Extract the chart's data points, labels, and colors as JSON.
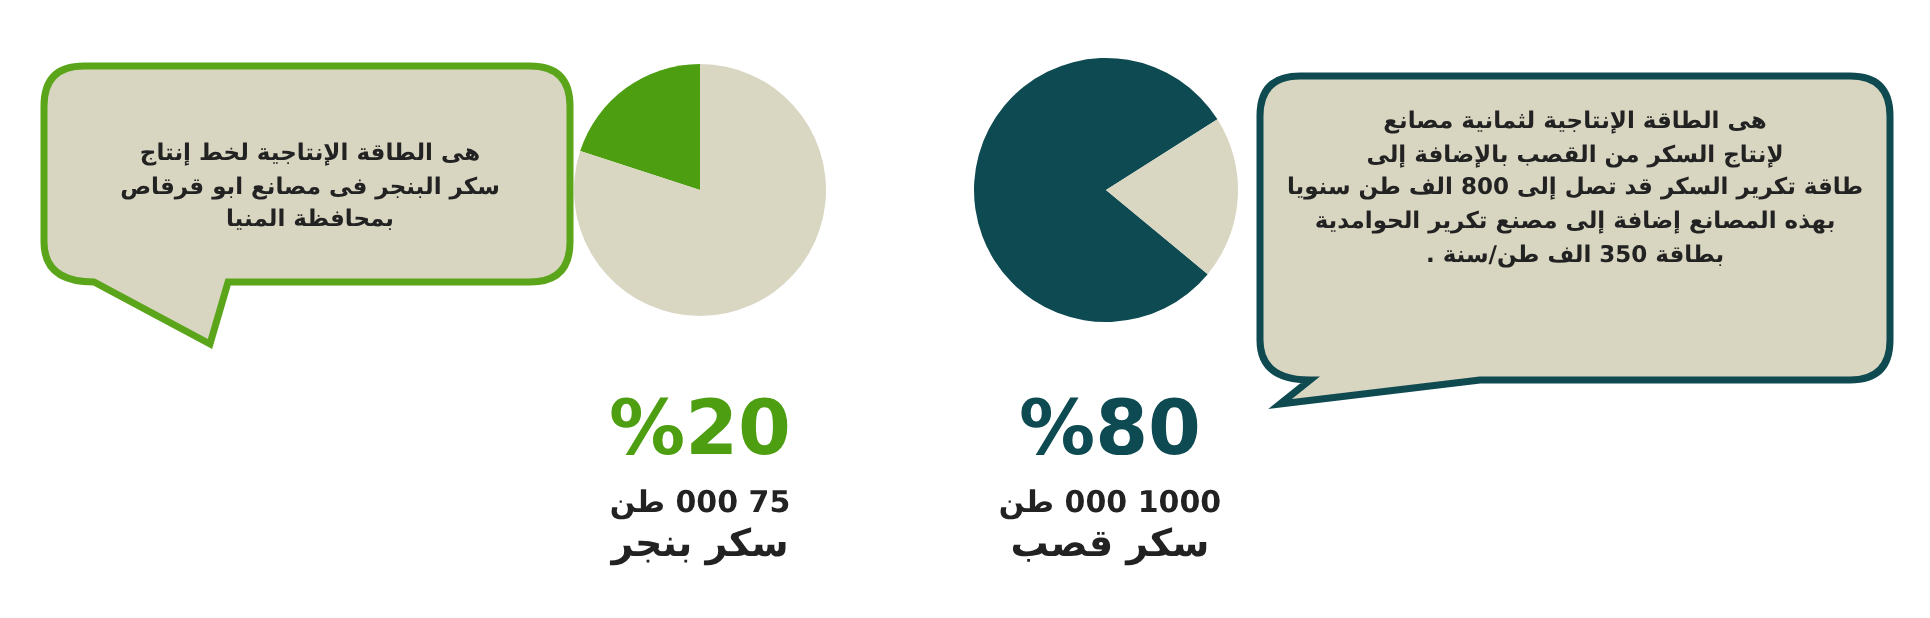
{
  "chart_data": [
    {
      "type": "pie",
      "categories": [
        null,
        null
      ],
      "values": [
        20,
        80
      ],
      "colors": [
        "#4d9e10",
        "#d9d6c2"
      ],
      "title": "%20",
      "annotations": [
        "75 000 طن",
        "سكر بنجر",
        "هى الطاقة الإنتاجية لخط إنتاج\nسكر البنجر فى مصانع ابو قرقاص\nبمحافظة المنيا"
      ]
    },
    {
      "type": "pie",
      "categories": [
        null,
        null
      ],
      "values": [
        80,
        20
      ],
      "colors": [
        "#0d4a52",
        "#d9d6c2"
      ],
      "title": "%80",
      "annotations": [
        "1000 000 طن",
        "سكر قصب",
        "هى الطاقة الإنتاجية لثمانية مصانع\nلإنتاج السكر من القصب بالإضافة إلى\nطاقة تكرير السكر قد تصل إلى 800 الف طن سنويا\nبهذه المصانع إضافة إلى مصنع تكرير الحوامدية\nبطاقة 350 الف طن/سنة ."
      ]
    }
  ]
}
